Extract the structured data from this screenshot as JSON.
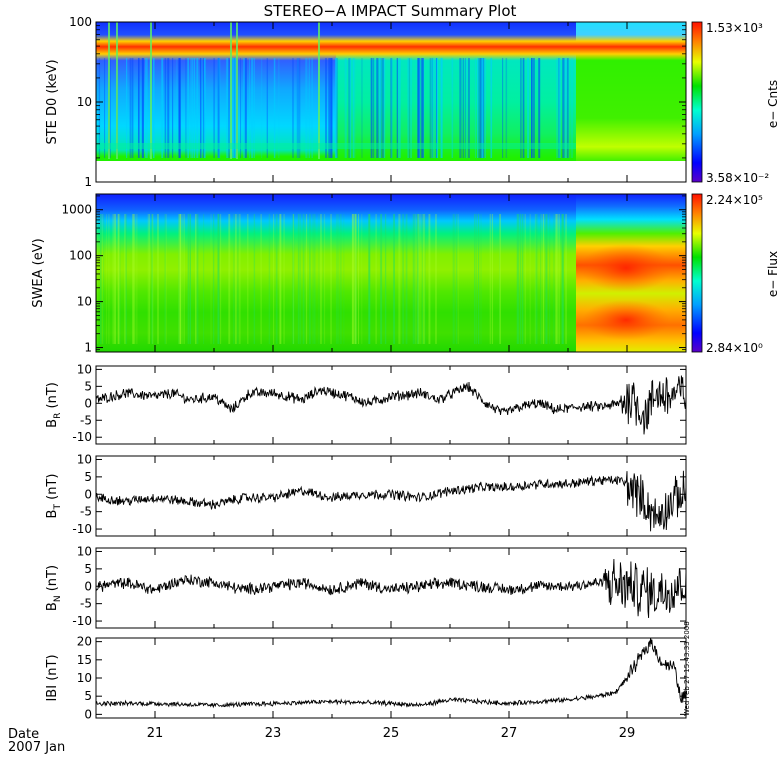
{
  "title": "STEREO−A IMPACT Summary Plot",
  "footer": {
    "date_label": "Date",
    "month_label": "2007 Jan"
  },
  "timestamp": "Wed Feb 27 15:43:33 2008",
  "x_axis": {
    "ticks": [
      "21",
      "23",
      "25",
      "27",
      "29"
    ],
    "tick_days": [
      21,
      23,
      25,
      27,
      29
    ],
    "range": [
      20,
      30
    ]
  },
  "chart_data": [
    {
      "type": "heatmap",
      "ylabel": "STE D0 (keV)",
      "y_scale": "log",
      "ylim": [
        1,
        100
      ],
      "y_ticks": [
        "1",
        "10",
        "100"
      ],
      "colorbar": {
        "max_label": "1.53×10³",
        "min_label": "3.58×10⁻²",
        "title": "e− Cnts"
      },
      "description_values": {
        "data_low_keV": 2,
        "band_center_keV": 65,
        "data_gap_end_day": 28.1
      }
    },
    {
      "type": "heatmap",
      "ylabel": "SWEA (eV)",
      "y_scale": "log",
      "ylim": [
        0.8,
        2200
      ],
      "y_ticks": [
        "1",
        "10",
        "100",
        "1000"
      ],
      "colorbar": {
        "max_label": "2.24×10⁵",
        "min_label": "2.84×10⁰",
        "title": "e− Flux"
      },
      "description_values": {
        "enhancement_start_day": 28.1,
        "peak_day": 29.2
      }
    },
    {
      "type": "line",
      "ylabel": "B_R (nT)",
      "ylabel_main": "B",
      "ylabel_sub": "R",
      "ylabel_unit": " (nT)",
      "ylim": [
        -12,
        11
      ],
      "y_ticks": [
        -10,
        -5,
        0,
        5,
        10
      ],
      "anchors_x": [
        20.0,
        20.5,
        21.0,
        21.3,
        21.6,
        22.0,
        22.3,
        22.6,
        23.0,
        23.5,
        23.8,
        24.3,
        24.6,
        25.0,
        25.5,
        25.8,
        26.3,
        26.6,
        26.9,
        27.2,
        27.5,
        27.8,
        28.2,
        28.6,
        28.9,
        29.1,
        29.3,
        29.5,
        29.7,
        29.9
      ],
      "anchors_y": [
        1,
        3,
        2,
        3,
        1,
        2,
        -2,
        3,
        3,
        1,
        4,
        2,
        0,
        2,
        3,
        1,
        5,
        0,
        -3,
        -1,
        0,
        -2,
        -1,
        -1,
        0,
        2,
        -4,
        3,
        2,
        3
      ],
      "noise": 2.2,
      "burst_start": 28.9
    },
    {
      "type": "line",
      "ylabel": "B_T (nT)",
      "ylabel_main": "B",
      "ylabel_sub": "T",
      "ylabel_unit": " (nT)",
      "ylim": [
        -12,
        11
      ],
      "y_ticks": [
        -10,
        -5,
        0,
        5,
        10
      ],
      "anchors_x": [
        20.0,
        20.5,
        21.0,
        21.5,
        22.0,
        22.5,
        23.0,
        23.5,
        24.0,
        24.5,
        25.0,
        25.5,
        26.0,
        26.5,
        27.0,
        27.5,
        28.0,
        28.5,
        28.9,
        29.2,
        29.5,
        29.9
      ],
      "anchors_y": [
        -1,
        -2,
        -1,
        -2,
        -3,
        -1,
        -1,
        1,
        -1,
        0,
        0,
        -1,
        1,
        2,
        2,
        3,
        3,
        4,
        4,
        0,
        -7,
        0
      ],
      "noise": 2.0,
      "burst_start": 29.0
    },
    {
      "type": "line",
      "ylabel": "B_N (nT)",
      "ylabel_main": "B",
      "ylabel_sub": "N",
      "ylabel_unit": " (nT)",
      "ylim": [
        -12,
        11
      ],
      "y_ticks": [
        -10,
        -5,
        0,
        5,
        10
      ],
      "anchors_x": [
        20.0,
        20.5,
        21.0,
        21.5,
        22.0,
        22.5,
        23.0,
        23.5,
        24.0,
        24.5,
        25.0,
        25.5,
        26.0,
        26.5,
        27.0,
        27.5,
        28.0,
        28.5,
        29.0,
        29.5,
        29.9
      ],
      "anchors_y": [
        0,
        1,
        -1,
        2,
        1,
        -1,
        0,
        1,
        -1,
        1,
        -1,
        0,
        1,
        0,
        -1,
        0,
        0,
        1,
        0,
        -2,
        1
      ],
      "noise": 2.4,
      "burst_start": 28.6
    },
    {
      "type": "line",
      "ylabel": "|B| (nT)",
      "ylabel_main": "IBI",
      "ylabel_sub": "",
      "ylabel_unit": " (nT)",
      "ylim": [
        -1,
        21
      ],
      "y_ticks": [
        0,
        5,
        10,
        15,
        20
      ],
      "anchors_x": [
        20.0,
        21.0,
        22.0,
        23.0,
        24.0,
        25.0,
        25.5,
        26.0,
        26.5,
        27.0,
        27.5,
        28.0,
        28.5,
        28.8,
        29.0,
        29.2,
        29.4,
        29.6,
        29.8,
        29.9
      ],
      "anchors_y": [
        3,
        3,
        2.5,
        3,
        3.5,
        3,
        2.5,
        4,
        3.5,
        3,
        3.5,
        4,
        5,
        6,
        10,
        15,
        20,
        14,
        13,
        5
      ],
      "noise": 0.9,
      "burst_start": 29.0
    }
  ]
}
